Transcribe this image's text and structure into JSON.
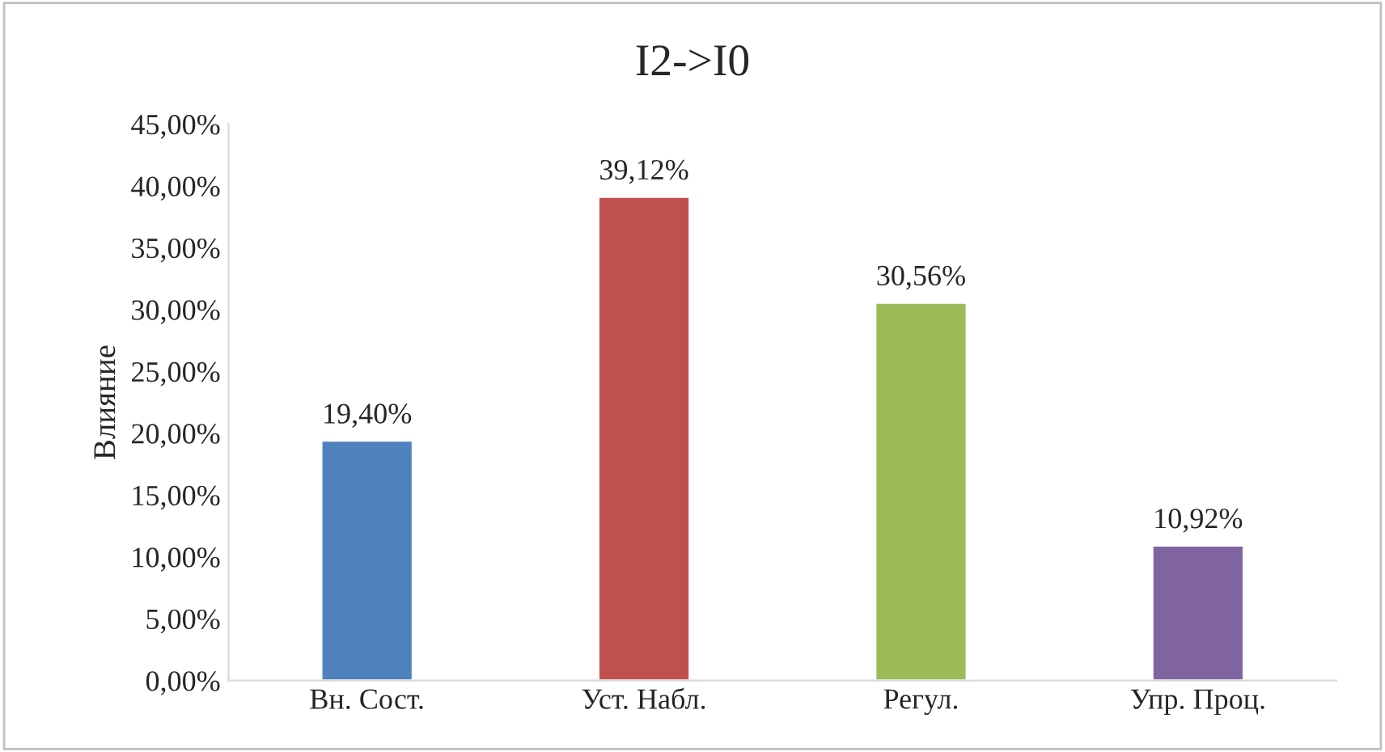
{
  "chart_data": {
    "type": "bar",
    "title": "I2->I0",
    "ylabel": "Влияние",
    "categories": [
      "Вн. Сост.",
      "Уст. Набл.",
      "Регул.",
      "Упр. Проц."
    ],
    "values": [
      19.4,
      39.12,
      30.56,
      10.92
    ],
    "colors": [
      "#4f81bd",
      "#c0504d",
      "#9bbb59",
      "#8064a2"
    ],
    "value_labels": [
      "19,40%",
      "39,12%",
      "30,56%",
      "10,92%"
    ],
    "ylim": [
      0,
      45
    ],
    "yticks": [
      {
        "value": 0,
        "label": "0,00%"
      },
      {
        "value": 5,
        "label": "5,00%"
      },
      {
        "value": 10,
        "label": "10,00%"
      },
      {
        "value": 15,
        "label": "15,00%"
      },
      {
        "value": 20,
        "label": "20,00%"
      },
      {
        "value": 25,
        "label": "25,00%"
      },
      {
        "value": 30,
        "label": "30,00%"
      },
      {
        "value": 35,
        "label": "35,00%"
      },
      {
        "value": 40,
        "label": "40,00%"
      },
      {
        "value": 45,
        "label": "45,00%"
      }
    ],
    "grid": false,
    "legend": false
  }
}
